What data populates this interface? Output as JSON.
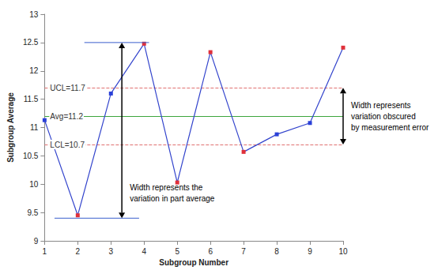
{
  "chart_data": {
    "type": "line",
    "x": [
      1,
      2,
      3,
      4,
      5,
      6,
      7,
      8,
      9,
      10
    ],
    "values": [
      11.13,
      9.45,
      11.6,
      12.48,
      10.03,
      12.33,
      10.57,
      10.88,
      11.08,
      12.41
    ],
    "color": "#3344cc",
    "colors": [
      "#2a40d8",
      "#e0303a",
      "#2a40d8",
      "#e0303a",
      "#e0303a",
      "#e0303a",
      "#e0303a",
      "#2a40d8",
      "#2a40d8",
      "#e0303a"
    ],
    "marker": "square",
    "xlabel": "Subgroup Number",
    "ylabel": "Subgroup Average",
    "xlim": [
      1,
      10
    ],
    "xticks": [
      1,
      2,
      3,
      4,
      5,
      6,
      7,
      8,
      9,
      10
    ],
    "ylim": [
      9,
      13
    ],
    "yticks": [
      9,
      9.5,
      10,
      10.5,
      11,
      11.5,
      12,
      12.5,
      13
    ],
    "grid": false,
    "reference_lines": [
      {
        "label": "UCL=11.7",
        "value": 11.7,
        "color": "#e07070",
        "line_style": "dashed"
      },
      {
        "label": "Avg=11.2",
        "value": 11.2,
        "color": "#3da63d",
        "line_style": "solid"
      },
      {
        "label": "LCL=10.7",
        "value": 10.7,
        "color": "#e07070",
        "line_style": "dashed"
      }
    ],
    "guide_lines": [
      {
        "y": 12.5,
        "x_range": [
          2.2,
          4.15
        ],
        "color": "#3a5fcd"
      },
      {
        "y": 9.4,
        "x_range": [
          1.3,
          3.85
        ],
        "color": "#3a5fcd"
      }
    ],
    "annotations": [
      {
        "text": "Width represents the\nvariation in part average",
        "x": 3.33,
        "y_range": [
          9.4,
          12.5
        ]
      },
      {
        "text": "Width represents\nvariation obscured\nby measurement error",
        "x": 10,
        "y_range": [
          10.7,
          11.7
        ]
      }
    ]
  }
}
